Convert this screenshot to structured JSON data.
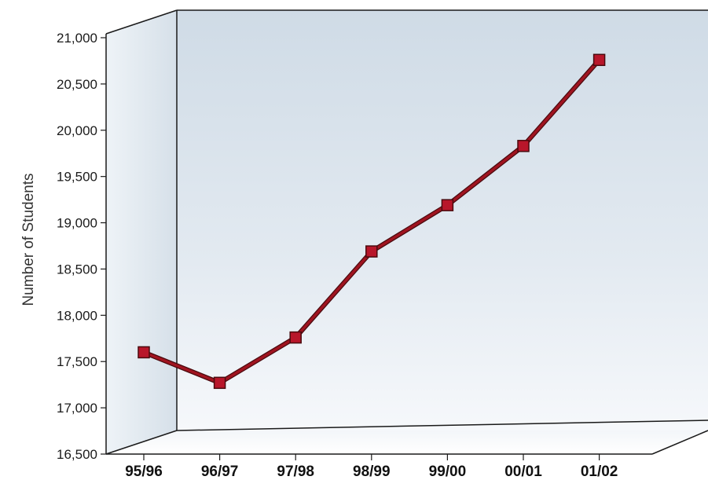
{
  "chart_data": {
    "type": "line",
    "categories": [
      "95/96",
      "96/97",
      "97/98",
      "98/99",
      "99/00",
      "00/01",
      "01/02"
    ],
    "values": [
      17600,
      17270,
      17760,
      18690,
      19190,
      19830,
      20760
    ],
    "title": "",
    "xlabel": "",
    "ylabel": "Number of Students",
    "ylim": [
      16500,
      21000
    ],
    "yticks": [
      "16,500",
      "17,000",
      "17,500",
      "18,000",
      "18,500",
      "19,000",
      "19,500",
      "20,000",
      "20,500",
      "21,000"
    ],
    "grid": false,
    "legend": "none",
    "style": "3d-box"
  },
  "colors": {
    "line": "#a01420",
    "line_outline": "#4a0a0e",
    "marker": "#b8162a",
    "frame": "#1a1a1a",
    "panel_top": "#d9e3ec",
    "panel_bottom": "#f5f8fb"
  }
}
